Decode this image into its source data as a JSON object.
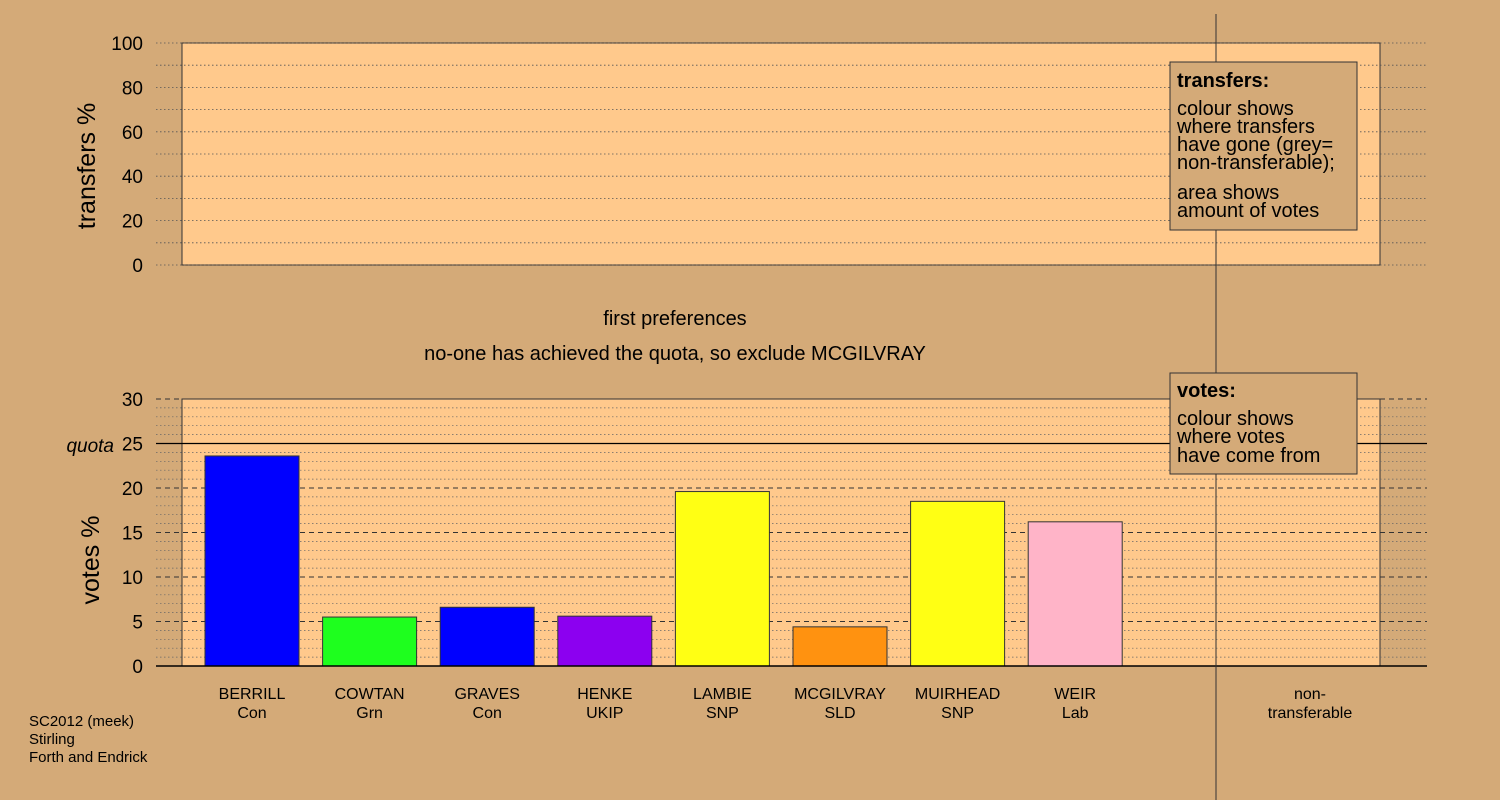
{
  "chart_data": [
    {
      "type": "bar",
      "ylabel": "transfers %",
      "ylim": [
        0,
        100
      ],
      "yticks": [
        0,
        20,
        40,
        60,
        80,
        100
      ],
      "grid": true,
      "legend": {
        "title": "transfers:",
        "lines": [
          "colour shows",
          "where transfers",
          "have gone (grey=",
          "non-transferable);"
        ],
        "lines2": [
          "area shows",
          "amount of votes"
        ]
      },
      "values": []
    },
    {
      "type": "bar",
      "ylabel": "votes %",
      "ylim": [
        0,
        30
      ],
      "yticks": [
        0,
        5,
        10,
        15,
        20,
        25,
        30
      ],
      "quota": 25,
      "quota_label": "quota",
      "grid": true,
      "captions": [
        "first preferences",
        "no-one has achieved the quota, so exclude MCGILVRAY"
      ],
      "legend": {
        "title": "votes:",
        "lines": [
          "colour shows",
          "where votes",
          "have come from"
        ]
      },
      "categories": [
        {
          "name": "BERRILL",
          "party": "Con",
          "value": 23.6,
          "color": "#0000ff"
        },
        {
          "name": "COWTAN",
          "party": "Grn",
          "value": 5.5,
          "color": "#1eff1e"
        },
        {
          "name": "GRAVES",
          "party": "Con",
          "value": 6.6,
          "color": "#0000ff"
        },
        {
          "name": "HENKE",
          "party": "UKIP",
          "value": 5.6,
          "color": "#8c00f0"
        },
        {
          "name": "LAMBIE",
          "party": "SNP",
          "value": 19.6,
          "color": "#ffff14"
        },
        {
          "name": "MCGILVRAY",
          "party": "SLD",
          "value": 4.4,
          "color": "#ff9210"
        },
        {
          "name": "MUIRHEAD",
          "party": "SNP",
          "value": 18.5,
          "color": "#ffff14"
        },
        {
          "name": "WEIR",
          "party": "Lab",
          "value": 16.2,
          "color": "#ffb4c8"
        }
      ],
      "nontransferable_label": [
        "non-",
        "transferable"
      ]
    }
  ],
  "footer": {
    "lines": [
      "SC2012 (meek)",
      "Stirling",
      "Forth and Endrick"
    ]
  },
  "colors": {
    "background": "#d4aa78",
    "plot_area": "#ffc98c"
  }
}
